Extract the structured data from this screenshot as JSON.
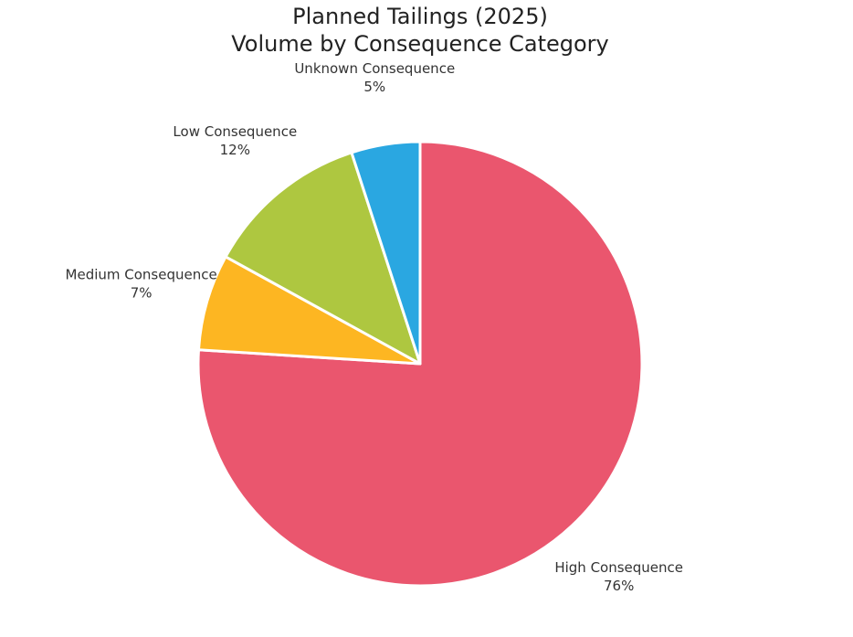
{
  "chart_data": {
    "type": "pie",
    "title": "Planned Tailings (2025)",
    "subtitle": "Volume by Consequence Category",
    "categories": [
      "High Consequence",
      "Medium Consequence",
      "Low Consequence",
      "Unknown Consequence"
    ],
    "values": [
      76,
      7,
      12,
      5
    ],
    "value_labels": [
      "76%",
      "7%",
      "12%",
      "5%"
    ],
    "colors": [
      "#ea566e",
      "#fdb622",
      "#aec740",
      "#2aa7e1"
    ],
    "start_angle": "12 o'clock",
    "direction": "clockwise",
    "legend": "none",
    "labels": "outside slices"
  }
}
